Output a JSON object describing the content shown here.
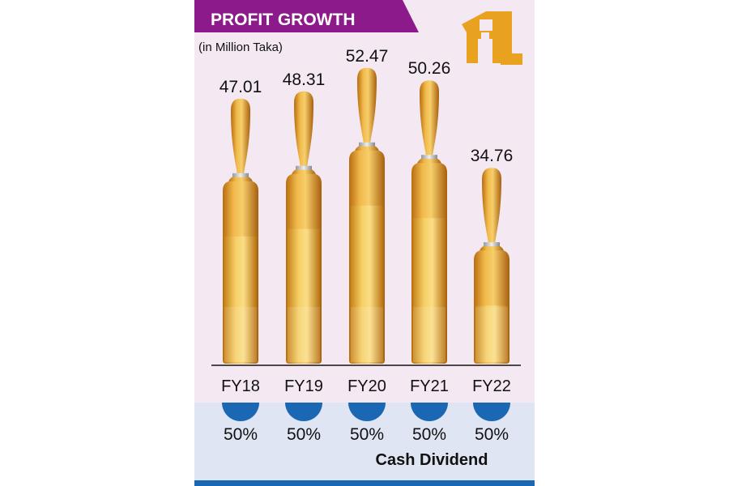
{
  "header": {
    "title": "PROFIT GROWTH",
    "subtitle": "(in Million Taka)"
  },
  "logo": {
    "text": "ATL",
    "color": "#e9a21f"
  },
  "colors": {
    "header": "#8c1a8a",
    "background": "#f4e9f2",
    "dividend_band": "#dfe5f2",
    "dividend_circle": "#1a68b3",
    "ampoule": "#e2a431"
  },
  "chart_data": {
    "type": "bar",
    "title": "PROFIT GROWTH",
    "ylabel": "(in Million Taka)",
    "categories": [
      "FY18",
      "FY19",
      "FY20",
      "FY21",
      "FY22"
    ],
    "values": [
      47.01,
      48.31,
      52.47,
      50.26,
      34.76
    ],
    "value_labels": [
      "47.01",
      "48.31",
      "52.47",
      "50.26",
      "34.76"
    ],
    "grid": false,
    "secondary": {
      "name": "Cash Dividend",
      "values": [
        "50%",
        "50%",
        "50%",
        "50%",
        "50%"
      ]
    }
  }
}
